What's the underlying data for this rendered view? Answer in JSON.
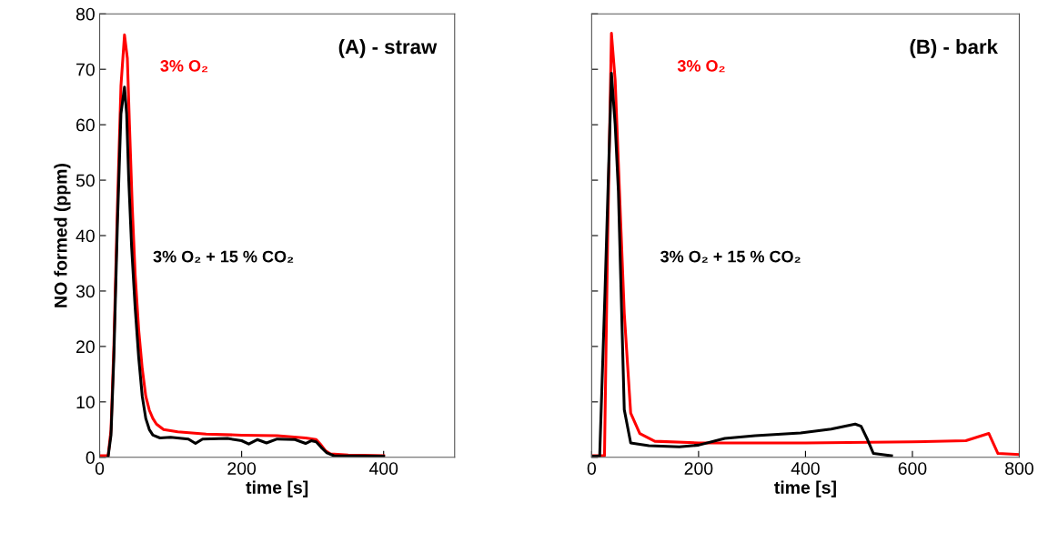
{
  "chart_data": [
    {
      "type": "line",
      "title": "(A) - straw",
      "xlabel": "time [s]",
      "ylabel": "NO formed (ppm)",
      "xlim": [
        0,
        500
      ],
      "xticks": [
        0,
        200,
        400
      ],
      "ylim": [
        0,
        80
      ],
      "yticks": [
        0,
        10,
        20,
        30,
        40,
        50,
        60,
        70,
        80
      ],
      "grid": false,
      "legend": false,
      "series": [
        {
          "name": "3% O₂",
          "color": "#ff0000",
          "x": [
            0,
            12,
            16,
            20,
            25,
            30,
            35,
            39,
            42,
            46,
            50,
            55,
            60,
            65,
            70,
            75,
            80,
            90,
            110,
            150,
            200,
            250,
            290,
            305,
            312,
            318,
            325,
            350,
            400
          ],
          "values": [
            0.3,
            0.3,
            5,
            20,
            45,
            67,
            76.2,
            72,
            60,
            45,
            33,
            23,
            16,
            11,
            8.5,
            7,
            6,
            5,
            4.6,
            4.2,
            4,
            3.9,
            3.5,
            3.2,
            2.2,
            1.2,
            0.6,
            0.4,
            0.3
          ]
        },
        {
          "name": "3% O₂ + 15 % CO₂",
          "color": "#000000",
          "x": [
            12,
            16,
            20,
            25,
            30,
            35,
            38,
            41,
            45,
            50,
            55,
            60,
            65,
            70,
            75,
            85,
            100,
            125,
            135,
            145,
            180,
            200,
            210,
            222,
            235,
            250,
            275,
            290,
            298,
            305,
            312,
            320,
            330,
            400
          ],
          "values": [
            0.2,
            4,
            18,
            42,
            62,
            66.8,
            62,
            50,
            38,
            27,
            18,
            11,
            7,
            5,
            4,
            3.5,
            3.6,
            3.3,
            2.5,
            3.3,
            3.4,
            3,
            2.4,
            3.2,
            2.6,
            3.3,
            3.2,
            2.5,
            3,
            2.8,
            1.8,
            0.8,
            0.3,
            0.2
          ]
        }
      ]
    },
    {
      "type": "line",
      "title": "(B) - bark",
      "xlabel": "time [s]",
      "xlim": [
        0,
        800
      ],
      "xticks": [
        0,
        200,
        400,
        600,
        800
      ],
      "ylim": [
        0,
        80
      ],
      "yticks": [
        0,
        10,
        20,
        30,
        40,
        50,
        60,
        70,
        80
      ],
      "tick_labels": "x",
      "grid": false,
      "legend": false,
      "series": [
        {
          "name": "3% O₂",
          "color": "#ff0000",
          "x": [
            0,
            24,
            30,
            37,
            44,
            50,
            61,
            73,
            90,
            118,
            200,
            400,
            600,
            700,
            743,
            760,
            800
          ],
          "values": [
            0.3,
            0.3,
            40,
            76.5,
            68,
            53,
            26,
            8,
            4.3,
            2.9,
            2.6,
            2.6,
            2.8,
            3,
            4.3,
            0.7,
            0.5
          ]
        },
        {
          "name": "3% O₂ + 15 % CO₂",
          "color": "#000000",
          "x": [
            0,
            15,
            25,
            37,
            44,
            50,
            61,
            73,
            107,
            164,
            200,
            249,
            306,
            391,
            448,
            493,
            504,
            516,
            527,
            561
          ],
          "values": [
            0.2,
            0.2,
            30,
            69.3,
            60,
            48,
            8.6,
            2.6,
            2.1,
            1.9,
            2.2,
            3.4,
            3.9,
            4.4,
            5.1,
            6,
            5.6,
            3.2,
            0.7,
            0.3
          ]
        }
      ]
    }
  ]
}
